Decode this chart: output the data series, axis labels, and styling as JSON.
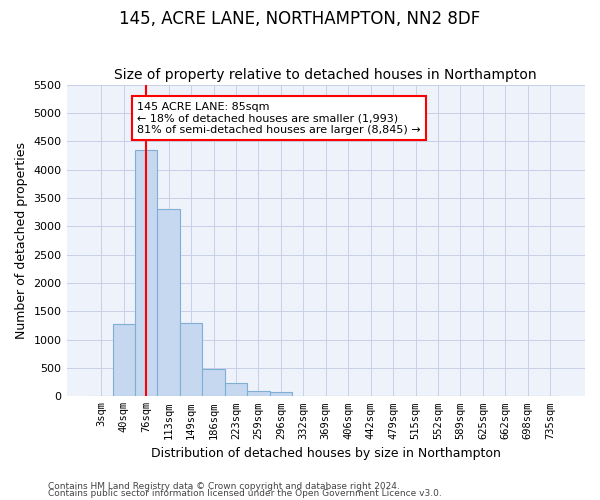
{
  "title": "145, ACRE LANE, NORTHAMPTON, NN2 8DF",
  "subtitle": "Size of property relative to detached houses in Northampton",
  "xlabel": "Distribution of detached houses by size in Northampton",
  "ylabel": "Number of detached properties",
  "categories": [
    "3sqm",
    "40sqm",
    "76sqm",
    "113sqm",
    "149sqm",
    "186sqm",
    "223sqm",
    "259sqm",
    "296sqm",
    "332sqm",
    "369sqm",
    "406sqm",
    "442sqm",
    "479sqm",
    "515sqm",
    "552sqm",
    "589sqm",
    "625sqm",
    "662sqm",
    "698sqm",
    "735sqm"
  ],
  "values": [
    0,
    1280,
    4350,
    3300,
    1300,
    480,
    230,
    100,
    75,
    0,
    0,
    0,
    0,
    0,
    0,
    0,
    0,
    0,
    0,
    0,
    0
  ],
  "bar_color": "#c5d8f0",
  "bar_edge_color": "#7fafd4",
  "vline_x_index": 2,
  "vline_color": "red",
  "annotation_text": "145 ACRE LANE: 85sqm\n← 18% of detached houses are smaller (1,993)\n81% of semi-detached houses are larger (8,845) →",
  "annotation_box_color": "white",
  "annotation_box_edge": "red",
  "ylim": [
    0,
    5500
  ],
  "yticks": [
    0,
    500,
    1000,
    1500,
    2000,
    2500,
    3000,
    3500,
    4000,
    4500,
    5000,
    5500
  ],
  "footer_line1": "Contains HM Land Registry data © Crown copyright and database right 2024.",
  "footer_line2": "Contains public sector information licensed under the Open Government Licence v3.0.",
  "background_color": "#eef2fb",
  "grid_color": "#c8d0e8",
  "title_fontsize": 12,
  "subtitle_fontsize": 10,
  "ylabel_fontsize": 9,
  "xlabel_fontsize": 9
}
